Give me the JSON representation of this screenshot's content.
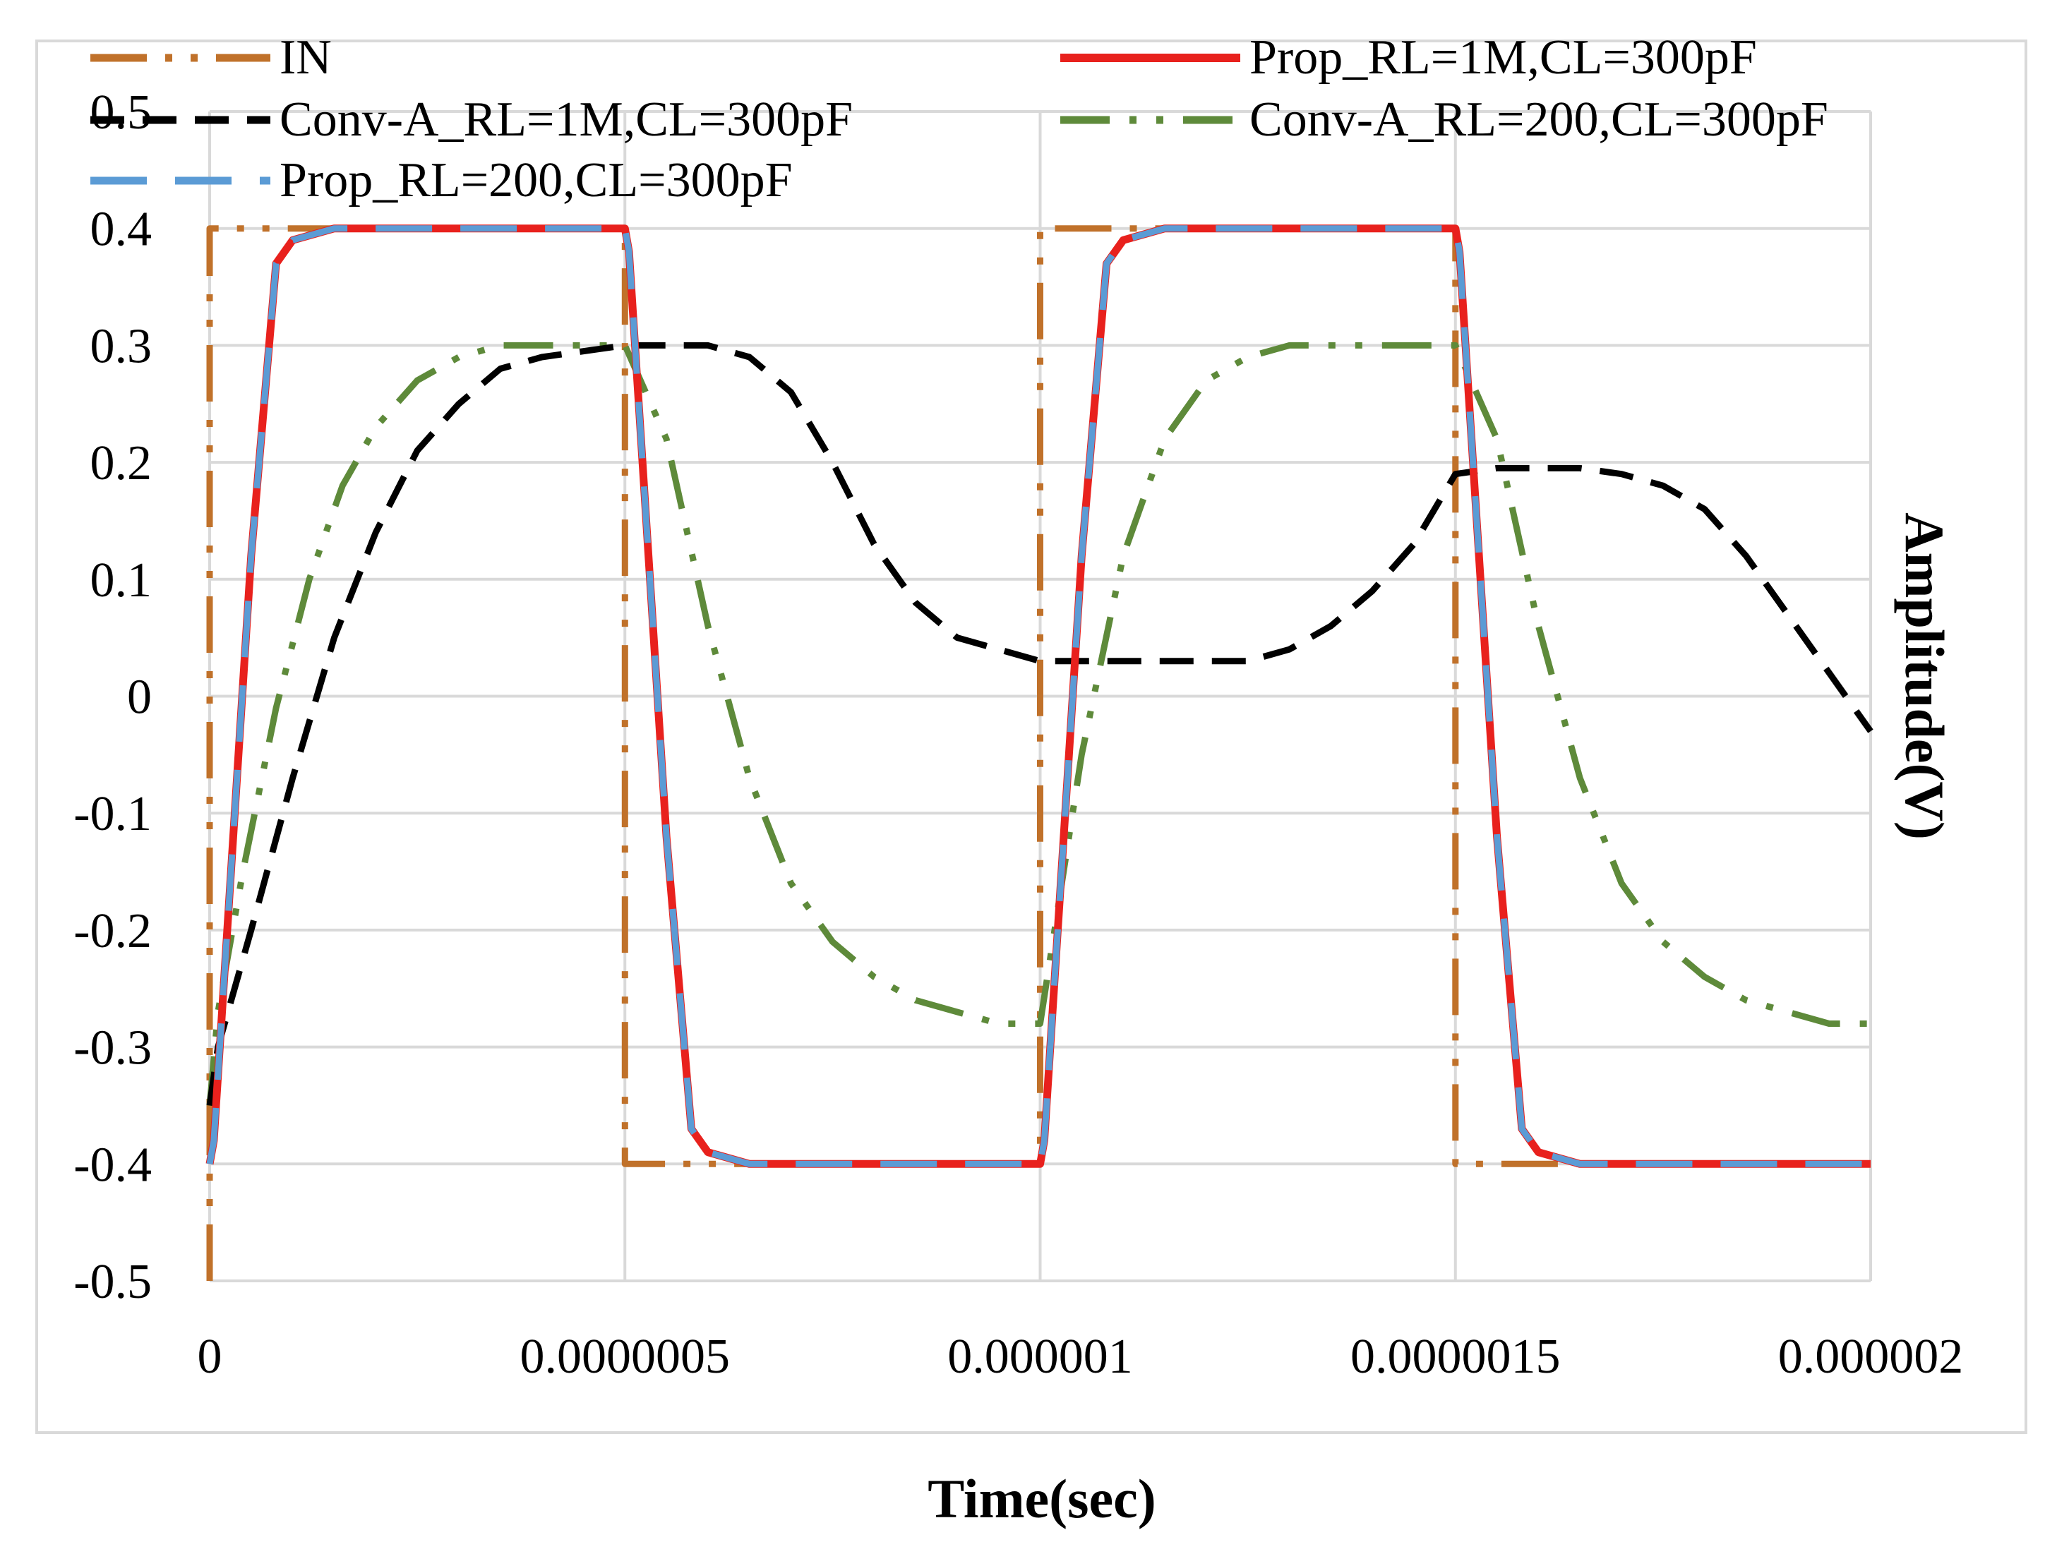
{
  "chart_data": {
    "type": "line",
    "title": "",
    "xlabel": "Time(sec)",
    "ylabel": "Amplitude(V)",
    "xlim": [
      0,
      2e-06
    ],
    "ylim": [
      -0.5,
      0.5
    ],
    "x_ticks": [
      "0",
      "0.0000005",
      "0.000001",
      "0.0000015",
      "0.000002"
    ],
    "y_ticks": [
      "0.5",
      "0.4",
      "0.3",
      "0.2",
      "0.1",
      "0",
      "-0.1",
      "-0.2",
      "-0.3",
      "-0.4",
      "-0.5"
    ],
    "grid": true,
    "legend_position": "top",
    "series": [
      {
        "name": "IN",
        "color": "#C0712A",
        "dash": "long-dash-dot-dot",
        "x": [
          0,
          0,
          5e-07,
          5e-07,
          1e-06,
          1e-06,
          1.5e-06,
          1.5e-06,
          2e-06
        ],
        "y": [
          -0.5,
          0.4,
          0.4,
          -0.4,
          -0.4,
          0.4,
          0.4,
          -0.4,
          -0.4
        ]
      },
      {
        "name": "Prop_RL=1M,CL=300pF",
        "color": "#E8211D",
        "dash": "solid",
        "x": [
          0,
          5e-09,
          5e-08,
          8e-08,
          1e-07,
          1.5e-07,
          5e-07,
          5.05e-07,
          5.5e-07,
          5.8e-07,
          6e-07,
          6.5e-07,
          1e-06,
          1.005e-06,
          1.05e-06,
          1.08e-06,
          1.1e-06,
          1.15e-06,
          1.5e-06,
          1.505e-06,
          1.55e-06,
          1.58e-06,
          1.6e-06,
          1.65e-06,
          2e-06
        ],
        "y": [
          -0.4,
          -0.38,
          0.12,
          0.37,
          0.39,
          0.4,
          0.4,
          0.38,
          -0.12,
          -0.37,
          -0.39,
          -0.4,
          -0.4,
          -0.38,
          0.12,
          0.37,
          0.39,
          0.4,
          0.4,
          0.38,
          -0.12,
          -0.37,
          -0.39,
          -0.4,
          -0.4
        ]
      },
      {
        "name": "Conv-A_RL=1M,CL=300pF",
        "color": "#000000",
        "dash": "dash",
        "x": [
          0,
          1e-08,
          5e-08,
          1e-07,
          1.5e-07,
          2e-07,
          2.5e-07,
          3e-07,
          3.5e-07,
          4e-07,
          4.5e-07,
          5e-07,
          5.5e-07,
          6e-07,
          6.5e-07,
          7e-07,
          7.5e-07,
          8e-07,
          8.5e-07,
          9e-07,
          9.5e-07,
          1e-06,
          1.05e-06,
          1.1e-06,
          1.15e-06,
          1.2e-06,
          1.25e-06,
          1.3e-06,
          1.35e-06,
          1.4e-06,
          1.45e-06,
          1.5e-06,
          1.55e-06,
          1.6e-06,
          1.65e-06,
          1.7e-06,
          1.75e-06,
          1.8e-06,
          1.85e-06,
          1.9e-06,
          1.95e-06,
          2e-06
        ],
        "y": [
          -0.35,
          -0.3,
          -0.2,
          -0.07,
          0.05,
          0.14,
          0.21,
          0.25,
          0.28,
          0.29,
          0.295,
          0.3,
          0.3,
          0.3,
          0.29,
          0.26,
          0.2,
          0.13,
          0.08,
          0.05,
          0.04,
          0.03,
          0.03,
          0.03,
          0.03,
          0.03,
          0.03,
          0.04,
          0.06,
          0.09,
          0.13,
          0.19,
          0.195,
          0.195,
          0.195,
          0.19,
          0.18,
          0.16,
          0.12,
          0.07,
          0.02,
          -0.03
        ]
      },
      {
        "name": "Conv-A_RL=200,CL=300pF",
        "color": "#5E8A3A",
        "dash": "dash-dot-dot",
        "x": [
          0,
          1e-08,
          4e-08,
          8e-08,
          1.2e-07,
          1.6e-07,
          2e-07,
          2.5e-07,
          3e-07,
          3.5e-07,
          4e-07,
          4.5e-07,
          5e-07,
          5.5e-07,
          6e-07,
          6.5e-07,
          7e-07,
          7.5e-07,
          8e-07,
          8.5e-07,
          9e-07,
          9.5e-07,
          1e-06,
          1.05e-06,
          1.1e-06,
          1.15e-06,
          1.2e-06,
          1.25e-06,
          1.3e-06,
          1.35e-06,
          1.4e-06,
          1.45e-06,
          1.5e-06,
          1.55e-06,
          1.6e-06,
          1.65e-06,
          1.7e-06,
          1.75e-06,
          1.8e-06,
          1.85e-06,
          1.9e-06,
          1.95e-06,
          2e-06
        ],
        "y": [
          -0.35,
          -0.27,
          -0.15,
          -0.01,
          0.1,
          0.18,
          0.23,
          0.27,
          0.29,
          0.3,
          0.3,
          0.3,
          0.3,
          0.22,
          0.06,
          -0.07,
          -0.16,
          -0.21,
          -0.24,
          -0.26,
          -0.27,
          -0.28,
          -0.28,
          -0.05,
          0.12,
          0.22,
          0.27,
          0.29,
          0.3,
          0.3,
          0.3,
          0.3,
          0.3,
          0.22,
          0.06,
          -0.07,
          -0.16,
          -0.21,
          -0.24,
          -0.26,
          -0.27,
          -0.28,
          -0.28
        ]
      },
      {
        "name": "Prop_RL=200,CL=300pF",
        "color": "#5B9BD5",
        "dash": "long-dash",
        "x": [
          0,
          5e-09,
          5e-08,
          8e-08,
          1e-07,
          1.5e-07,
          5e-07,
          5.05e-07,
          5.5e-07,
          5.8e-07,
          6e-07,
          6.5e-07,
          1e-06,
          1.005e-06,
          1.05e-06,
          1.08e-06,
          1.1e-06,
          1.15e-06,
          1.5e-06,
          1.505e-06,
          1.55e-06,
          1.58e-06,
          1.6e-06,
          1.65e-06,
          2e-06
        ],
        "y": [
          -0.4,
          -0.38,
          0.12,
          0.37,
          0.39,
          0.4,
          0.4,
          0.38,
          -0.12,
          -0.37,
          -0.39,
          -0.4,
          -0.4,
          -0.38,
          0.12,
          0.37,
          0.39,
          0.4,
          0.4,
          0.38,
          -0.12,
          -0.37,
          -0.39,
          -0.4,
          -0.4
        ]
      }
    ]
  }
}
